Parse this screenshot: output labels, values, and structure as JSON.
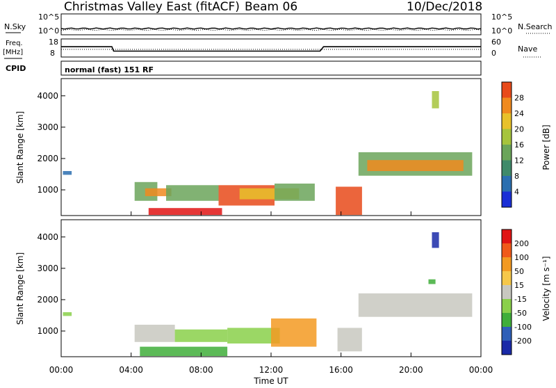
{
  "header": {
    "site": "Christmas Valley East (fitACF)",
    "beam": "Beam 06",
    "date": "10/Dec/2018"
  },
  "strip_labels": {
    "nsky": "N.Sky",
    "freq_line1": "Freq.",
    "freq_line2": "[MHz]",
    "cpid": "CPID",
    "nsearch": "N.Search",
    "nave": "Nave",
    "cpid_value": "normal (fast) 151 RF"
  },
  "colors": {
    "power": [
      "#1a2fd6",
      "#2b6fb0",
      "#3f8a6a",
      "#6ba55a",
      "#a6c43c",
      "#e8c12a",
      "#f08a1e",
      "#e84a1a",
      "#e01414"
    ],
    "velocity": [
      "#e01414",
      "#f05a1a",
      "#f39a22",
      "#f6c84a",
      "#c8c8c0",
      "#8ad04a",
      "#3fae3a",
      "#2e5fb8",
      "#1a2aa8"
    ]
  },
  "chart_data": [
    {
      "type": "line",
      "name": "N.Sky / N.Search strip",
      "left_ticks": [
        "10^5",
        "10^0"
      ],
      "right_ticks": [
        "10^5",
        "10^0"
      ]
    },
    {
      "type": "line",
      "name": "Freq / Nave strip",
      "left_ticks": [
        "18",
        "8"
      ],
      "right_ticks": [
        "60",
        "0"
      ],
      "freq_mhz": [
        {
          "t": 0.0,
          "v": 14
        },
        {
          "t": 2.9,
          "v": 14
        },
        {
          "t": 3.0,
          "v": 10.5
        },
        {
          "t": 14.8,
          "v": 10.5
        },
        {
          "t": 15.0,
          "v": 14
        },
        {
          "t": 24.0,
          "v": 14
        }
      ]
    },
    {
      "type": "heatmap",
      "ylabel": "Slant Range [km]",
      "colorbar_label": "Power [dB]",
      "colorbar_ticks": [
        "28",
        "24",
        "20",
        "16",
        "12",
        "8",
        "4"
      ],
      "yticks": [
        "1000",
        "2000",
        "3000",
        "4000"
      ],
      "ylim": [
        180,
        4550
      ],
      "xlim": [
        0,
        24
      ],
      "patches": [
        {
          "t0": 0.1,
          "t1": 0.6,
          "r0": 1480,
          "r1": 1600,
          "color": 1
        },
        {
          "t0": 4.2,
          "t1": 5.5,
          "r0": 650,
          "r1": 1250,
          "color": 3
        },
        {
          "t0": 4.8,
          "t1": 6.3,
          "r0": 800,
          "r1": 1050,
          "color": 6
        },
        {
          "t0": 5.0,
          "t1": 9.2,
          "r0": 200,
          "r1": 420,
          "color": 8
        },
        {
          "t0": 6.0,
          "t1": 9.0,
          "r0": 650,
          "r1": 1150,
          "color": 3
        },
        {
          "t0": 9.0,
          "t1": 12.2,
          "r0": 500,
          "r1": 1150,
          "color": 7
        },
        {
          "t0": 10.2,
          "t1": 13.6,
          "r0": 700,
          "r1": 1050,
          "color": 5
        },
        {
          "t0": 12.2,
          "t1": 14.5,
          "r0": 650,
          "r1": 1200,
          "color": 3
        },
        {
          "t0": 15.7,
          "t1": 17.2,
          "r0": 200,
          "r1": 1100,
          "color": 7
        },
        {
          "t0": 17.0,
          "t1": 23.5,
          "r0": 1450,
          "r1": 2200,
          "color": 3
        },
        {
          "t0": 17.5,
          "t1": 23.0,
          "r0": 1600,
          "r1": 1950,
          "color": 6
        },
        {
          "t0": 21.2,
          "t1": 21.6,
          "r0": 3600,
          "r1": 4150,
          "color": 4
        }
      ]
    },
    {
      "type": "heatmap",
      "ylabel": "Slant Range [km]",
      "colorbar_label": "Velocity [m s⁻¹]",
      "colorbar_ticks": [
        "200",
        "100",
        "50",
        "15",
        "-15",
        "-50",
        "-100",
        "-200"
      ],
      "yticks": [
        "1000",
        "2000",
        "3000",
        "4000"
      ],
      "ylim": [
        180,
        4550
      ],
      "xlim": [
        0,
        24
      ],
      "patches": [
        {
          "t0": 0.1,
          "t1": 0.6,
          "r0": 1480,
          "r1": 1600,
          "color": 5
        },
        {
          "t0": 4.2,
          "t1": 6.5,
          "r0": 650,
          "r1": 1200,
          "color": 4
        },
        {
          "t0": 4.5,
          "t1": 9.5,
          "r0": 200,
          "r1": 500,
          "color": 6
        },
        {
          "t0": 6.5,
          "t1": 9.5,
          "r0": 650,
          "r1": 1050,
          "color": 5
        },
        {
          "t0": 9.5,
          "t1": 12.5,
          "r0": 600,
          "r1": 1100,
          "color": 5
        },
        {
          "t0": 12.0,
          "t1": 14.6,
          "r0": 500,
          "r1": 1400,
          "color": 2
        },
        {
          "t0": 15.8,
          "t1": 17.2,
          "r0": 350,
          "r1": 1100,
          "color": 4
        },
        {
          "t0": 17.0,
          "t1": 23.5,
          "r0": 1450,
          "r1": 2200,
          "color": 4
        },
        {
          "t0": 21.2,
          "t1": 21.6,
          "r0": 3650,
          "r1": 4150,
          "color": 8
        },
        {
          "t0": 21.0,
          "t1": 21.4,
          "r0": 2500,
          "r1": 2650,
          "color": 6
        }
      ]
    }
  ],
  "time_axis": {
    "label": "Time UT",
    "ticks": [
      "00:00",
      "04:00",
      "08:00",
      "12:00",
      "16:00",
      "20:00",
      "00:00"
    ]
  }
}
